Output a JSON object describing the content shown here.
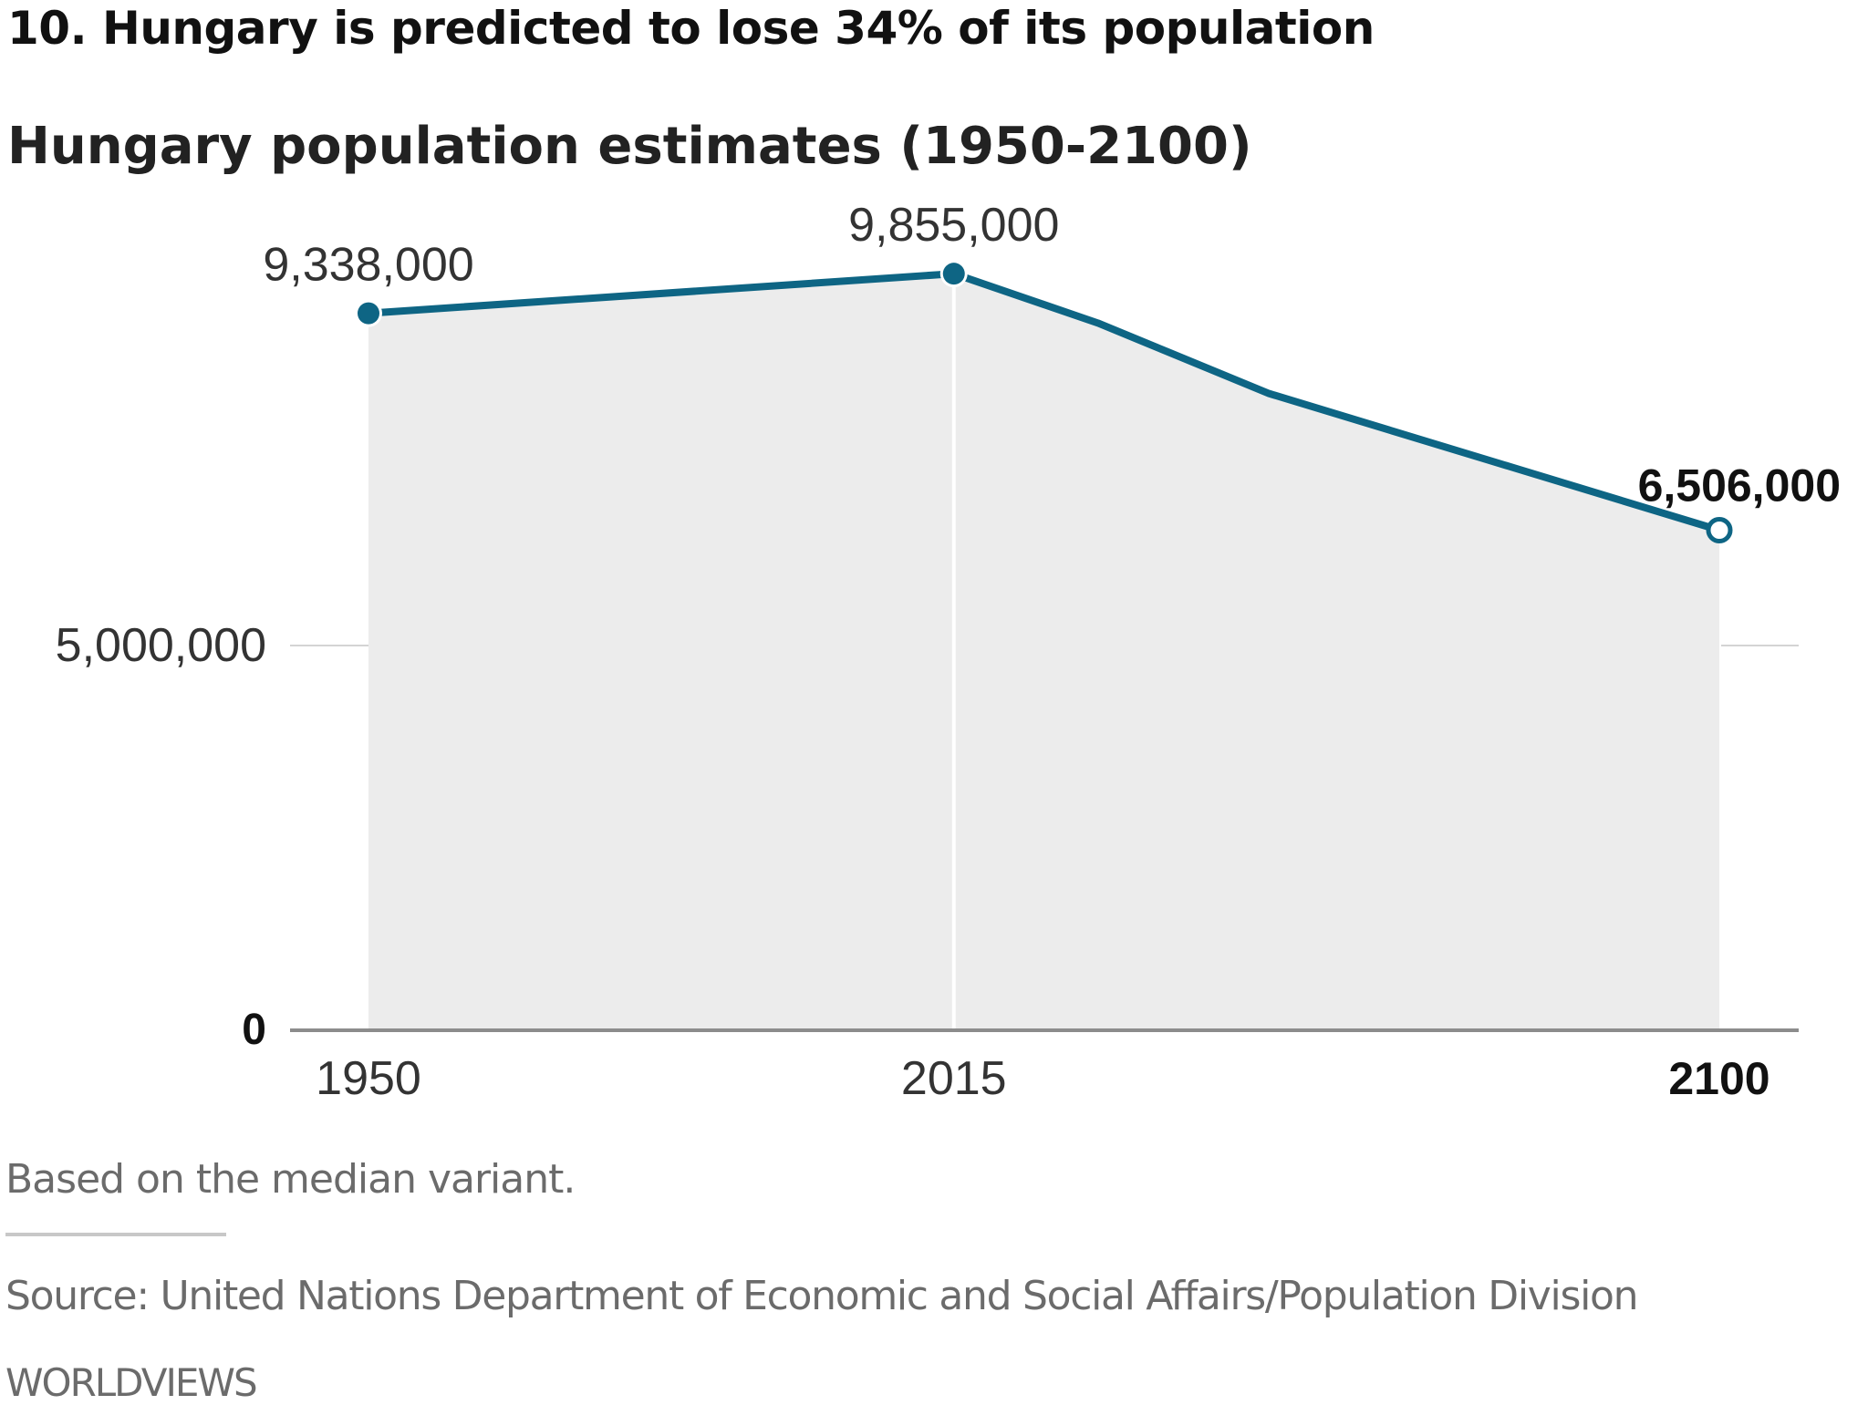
{
  "headline": "10. Hungary is predicted to lose 34% of its population",
  "colors": {
    "line": "#0e6584",
    "area": "#ececec",
    "axis": "#8c8c8c",
    "grid": "#d4d4d4",
    "text": "#333333"
  },
  "chart_data": {
    "type": "area",
    "title": "Hungary population estimates (1950-2100)",
    "xlabel": "",
    "ylabel": "",
    "xlim": [
      1950,
      2100
    ],
    "ylim": [
      0,
      10000000
    ],
    "grid": true,
    "series": [
      {
        "name": "Hungary population",
        "x": [
          1950,
          2015,
          2031,
          2050,
          2100
        ],
        "values": [
          9338000,
          9855000,
          9210000,
          8290000,
          6506000
        ]
      }
    ],
    "markers": [
      {
        "x": 1950,
        "value": 9338000,
        "label": "9,338,000",
        "style": "filled",
        "emphasis": false
      },
      {
        "x": 2015,
        "value": 9855000,
        "label": "9,855,000",
        "style": "filled",
        "emphasis": false
      },
      {
        "x": 2100,
        "value": 6506000,
        "label": "6,506,000",
        "style": "hollow",
        "emphasis": true
      }
    ],
    "y_ticks": [
      {
        "value": 0,
        "label": "0",
        "bold": true
      },
      {
        "value": 5000000,
        "label": "5,000,000",
        "bold": false
      }
    ],
    "x_ticks": [
      {
        "value": 1950,
        "label": "1950",
        "bold": false
      },
      {
        "value": 2015,
        "label": "2015",
        "bold": false
      },
      {
        "value": 2100,
        "label": "2100",
        "bold": true
      }
    ],
    "reference_line_x": 2015
  },
  "footer": {
    "note": "Based on the median variant.",
    "source": "Source: United Nations Department of Economic and Social Affairs/Population Division",
    "brand": "WORLDVIEWS"
  }
}
